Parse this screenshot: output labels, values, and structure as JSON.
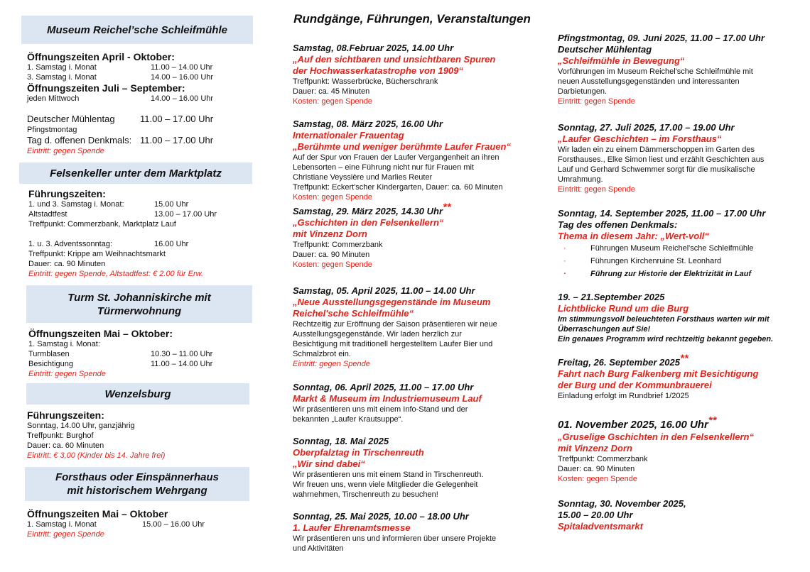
{
  "left": [
    {
      "header": "Museum Reichel’sche Schleifmühle",
      "lines": [
        {
          "type": "bold14",
          "text": "Öffnungszeiten April - Oktober:"
        },
        {
          "type": "row",
          "label": "1. Samstag i. Monat",
          "time": "11.00 – 14.00 Uhr"
        },
        {
          "type": "row",
          "label": "3. Samstag i. Monat",
          "time": "14.00 – 16.00 Uhr"
        },
        {
          "type": "bold14",
          "text": "Öffnungszeiten Juli – September:"
        },
        {
          "type": "row",
          "label": "jeden Mittwoch",
          "time": "14.00 – 16.00 Uhr"
        },
        {
          "type": "gap"
        },
        {
          "type": "bigrow",
          "label": "Deutscher Mühlentag",
          "time": "11.00 – 17.00 Uhr"
        },
        {
          "type": "text",
          "text": "Pfingstmontag"
        },
        {
          "type": "bigrow",
          "label": "Tag d. offenen Denkmals:",
          "time": "11.00 – 17.00 Uhr"
        },
        {
          "type": "red",
          "text": "Eintritt: gegen Spende"
        }
      ]
    },
    {
      "header": "Felsenkeller unter dem Marktplatz",
      "lines": [
        {
          "type": "bold14",
          "text": "Führungszeiten:"
        },
        {
          "type": "row",
          "label": "1. und 3. Samstag i. Monat:",
          "time": "15.00 Uhr"
        },
        {
          "type": "row",
          "label": "Altstadtfest",
          "time": "13.00 – 17.00 Uhr"
        },
        {
          "type": "text",
          "text": "Treffpunkt: Commerzbank, Marktplatz Lauf"
        },
        {
          "type": "gap"
        },
        {
          "type": "row",
          "label": "1. u. 3. Adventssonntag:",
          "time": "16.00 Uhr"
        },
        {
          "type": "text",
          "text": "Treffpunkt: Krippe am Weihnachtsmarkt"
        },
        {
          "type": "text",
          "text": "Dauer: ca. 90 Minuten"
        },
        {
          "type": "red",
          "text": "Eintritt: gegen Spende, Altstadtfest: € 2.00 für Erw."
        }
      ]
    },
    {
      "header": "Turm St. Johanniskirche mit Türmerwohnung",
      "lines": [
        {
          "type": "bold14",
          "text": "Öffnungszeiten Mai – Oktober:"
        },
        {
          "type": "text",
          "text": "1. Samstag i. Monat:"
        },
        {
          "type": "row",
          "label": "Turmblasen",
          "time": "10.30 – 11.00 Uhr"
        },
        {
          "type": "row",
          "label": "Besichtigung",
          "time": "11.00 – 14.00 Uhr"
        },
        {
          "type": "red",
          "text": "Eintritt: gegen Spende"
        }
      ]
    },
    {
      "header": "Wenzelsburg",
      "lines": [
        {
          "type": "bold14",
          "text": "Führungszeiten:"
        },
        {
          "type": "text",
          "text": "Sonntag, 14.00 Uhr, ganzjährig"
        },
        {
          "type": "text",
          "text": "Treffpunkt: Burghof"
        },
        {
          "type": "text",
          "text": "Dauer: ca. 60 Minuten"
        },
        {
          "type": "red",
          "text": "Eintritt: € 3,00 (Kinder bis 14. Jahre frei)"
        }
      ]
    },
    {
      "header": "Forsthaus oder Einspännerhaus mit historischem Wehrgang",
      "lines": [
        {
          "type": "bold14",
          "text": "Öffnungszeiten Mai – Oktober"
        },
        {
          "type": "row",
          "label": "1. Samstag i. Monat",
          "time": "15.00 – 16.00 Uhr"
        },
        {
          "type": "red",
          "text": "Eintritt: gegen Spende"
        }
      ]
    }
  ],
  "middle": {
    "title": "Rundgänge, Führungen, Veranstaltungen",
    "events": [
      {
        "lines": [
          {
            "type": "date",
            "text": "Samstag, 08.Februar 2025, 14.00 Uhr"
          },
          {
            "type": "red",
            "text": "„Auf den sichtbaren und unsichtbaren Spuren"
          },
          {
            "type": "red",
            "text": "der Hochwasserkatastrophe von 1909“"
          },
          {
            "type": "body",
            "text": "Treffpunkt: Wasserbrücke, Bücherschrank"
          },
          {
            "type": "body",
            "text": "Dauer: ca. 45 Minuten"
          },
          {
            "type": "cost",
            "text": "Kosten: gegen Spende"
          }
        ]
      },
      {
        "lines": [
          {
            "type": "date",
            "text": "Samstag, 08. März 2025, 16.00 Uhr"
          },
          {
            "type": "red",
            "text": "Internationaler Frauentag"
          },
          {
            "type": "red",
            "text": "„Berühmte und weniger berühmte Laufer Frauen“"
          },
          {
            "type": "body",
            "text": "Auf der Spur von Frauen der Laufer Vergangenheit an ihren"
          },
          {
            "type": "body",
            "text": "Lebensorten – eine Führung nicht nur für Frauen mit"
          },
          {
            "type": "body",
            "text": "Christiane Veyssière und Marlies Reuter"
          },
          {
            "type": "body",
            "text": "Treffpunkt: Eckert'scher Kindergarten, Dauer: ca. 60 Minuten"
          },
          {
            "type": "cost",
            "text": "Kosten: gegen Spende"
          }
        ]
      },
      {
        "lines": [
          {
            "type": "date",
            "text": "Samstag, 29. März 2025, 14.30 Uhr",
            "stars": "**"
          },
          {
            "type": "red",
            "text": "„Gschichten in den Felsenkellern“"
          },
          {
            "type": "red",
            "text": "mit Vinzenz Dorn"
          },
          {
            "type": "body",
            "text": "Treffpunkt: Commerzbank"
          },
          {
            "type": "body",
            "text": "Dauer: ca. 90 Minuten"
          },
          {
            "type": "cost",
            "text": "Kosten: gegen Spende"
          }
        ]
      },
      {
        "lines": [
          {
            "type": "date",
            "text": "Samstag, 05. April 2025, 11.00 – 14.00 Uhr"
          },
          {
            "type": "red",
            "text": "„Neue Ausstellungsgegenstände im Museum"
          },
          {
            "type": "red",
            "text": "Reichel'sche Schleifmühle“"
          },
          {
            "type": "body",
            "text": "Rechtzeitig zur Eröffnung der Saison präsentieren wir neue"
          },
          {
            "type": "body",
            "text": "Ausstellungsgegenstände. Wir laden herzlich zur"
          },
          {
            "type": "body",
            "text": "Besichtigung mit traditionell hergestelltem Laufer Bier und"
          },
          {
            "type": "body",
            "text": "Schmalzbrot ein."
          },
          {
            "type": "costi",
            "text": "Eintritt: gegen Spende"
          }
        ]
      },
      {
        "lines": [
          {
            "type": "date",
            "text": "Sonntag, 06. April 2025, 11.00 – 17.00 Uhr"
          },
          {
            "type": "red",
            "text": "Markt & Museum im Industriemuseum Lauf"
          },
          {
            "type": "body",
            "text": "Wir präsentieren uns mit einem Info-Stand und der"
          },
          {
            "type": "body",
            "text": "bekannten „Laufer Krautsuppe“."
          }
        ]
      },
      {
        "lines": [
          {
            "type": "date",
            "text": "Sonntag, 18. Mai 2025"
          },
          {
            "type": "red",
            "text": "Oberpfalztag in Tirschenreuth"
          },
          {
            "type": "red",
            "text": "„Wir sind dabei“"
          },
          {
            "type": "body",
            "text": "Wir präsentieren uns mit einem Stand in Tirschenreuth."
          },
          {
            "type": "body",
            "text": "Wir freuen uns, wenn viele Mitglieder die Gelegenheit"
          },
          {
            "type": "body",
            "text": "wahrnehmen, Tirschenreuth zu besuchen!"
          }
        ]
      },
      {
        "lines": [
          {
            "type": "date",
            "text": "Sonntag, 25. Mai 2025, 10.00 – 18.00 Uhr"
          },
          {
            "type": "red",
            "text": "1. Laufer Ehrenamtsmesse"
          },
          {
            "type": "body",
            "text": "Wir präsentieren uns und informieren über unsere Projekte"
          },
          {
            "type": "body",
            "text": "und Aktivitäten"
          }
        ]
      }
    ]
  },
  "right": {
    "events": [
      {
        "lines": [
          {
            "type": "date",
            "text": "Pfingstmontag, 09. Juni 2025, 11.00 – 17.00 Uhr"
          },
          {
            "type": "bld",
            "text": "Deutscher Mühlentag"
          },
          {
            "type": "red",
            "text": "„Schleifmühle in Bewegung“"
          },
          {
            "type": "body",
            "text": "Vorführungen im Museum Reichel'sche Schleifmühle mit"
          },
          {
            "type": "body",
            "text": "neuen Ausstellungsgegenständen und interessanten"
          },
          {
            "type": "body",
            "text": "Darbietungen."
          },
          {
            "type": "cost",
            "text": "Eintritt: gegen Spende"
          }
        ]
      },
      {
        "lines": [
          {
            "type": "date",
            "text": "Sonntag, 27. Juli 2025, 17.00 – 19.00 Uhr"
          },
          {
            "type": "red",
            "text": "„Laufer Geschichten – im Forsthaus“"
          },
          {
            "type": "body",
            "text": "Wir laden ein zu einem Dämmerschoppen im Garten des"
          },
          {
            "type": "body",
            "text": "Forsthauses., Elke Simon liest und erzählt Geschichten aus"
          },
          {
            "type": "body",
            "text": "Lauf und Gerhard Schwemmer sorgt für die musikalische"
          },
          {
            "type": "body",
            "text": "Umrahmung."
          },
          {
            "type": "cost",
            "text": "Eintritt: gegen Spende"
          }
        ]
      },
      {
        "lines": [
          {
            "type": "date",
            "text": "Sonntag, 14. September 2025, 11.00 – 17.00 Uhr"
          },
          {
            "type": "bld",
            "text": "Tag des offenen Denkmals:"
          },
          {
            "type": "red",
            "text": "Thema in diesem Jahr: „Wert-voll“"
          },
          {
            "type": "bullet",
            "text": "Führungen Museum Reichel'sche Schleifmühle"
          },
          {
            "type": "bullet",
            "text": "Führungen Kirchenruine St. Leonhard"
          },
          {
            "type": "bulletb",
            "text": "Führung zur Historie der Elektrizität in Lauf"
          }
        ]
      },
      {
        "lines": [
          {
            "type": "date",
            "text": "19. – 21.September 2025"
          },
          {
            "type": "red",
            "text": "Lichtblicke Rund um die Burg"
          },
          {
            "type": "bi",
            "text": " Im stimmungsvoll beleuchteten Forsthaus warten wir mit"
          },
          {
            "type": "bi",
            "text": "Überraschungen auf Sie!"
          },
          {
            "type": "bi",
            "text": "Ein genaues Programm wird rechtzeitig bekannt gegeben."
          }
        ]
      },
      {
        "lines": [
          {
            "type": "date",
            "text": "Freitag, 26. September 2025",
            "stars": "**"
          },
          {
            "type": "red",
            "text": "Fahrt nach Burg Falkenberg mit Besichtigung"
          },
          {
            "type": "red",
            "text": "der Burg und der Kommunbrauerei"
          },
          {
            "type": "body",
            "text": "Einladung erfolgt im Rundbrief 1/2025"
          }
        ]
      },
      {
        "lines": [
          {
            "type": "datelg",
            "text": "01. November 2025, 16.00 Uhr",
            "stars": "**"
          },
          {
            "type": "red",
            "text": "„Gruselige Gschichten in den Felsenkellern“"
          },
          {
            "type": "red",
            "text": "mit Vinzenz Dorn"
          },
          {
            "type": "body",
            "text": "Treffpunkt: Commerzbank"
          },
          {
            "type": "body",
            "text": "Dauer: ca. 90 Minuten"
          },
          {
            "type": "cost",
            "text": "Kosten: gegen Spende"
          }
        ]
      },
      {
        "lines": [
          {
            "type": "date",
            "text": "Sonntag, 30. November 2025,"
          },
          {
            "type": "date",
            "text": "15.00 – 20.00 Uhr"
          },
          {
            "type": "red",
            "text": "Spitaladventsmarkt"
          }
        ]
      }
    ]
  },
  "colors": {
    "accent_red": "#e2231a",
    "header_bg": "#dce6f2"
  }
}
